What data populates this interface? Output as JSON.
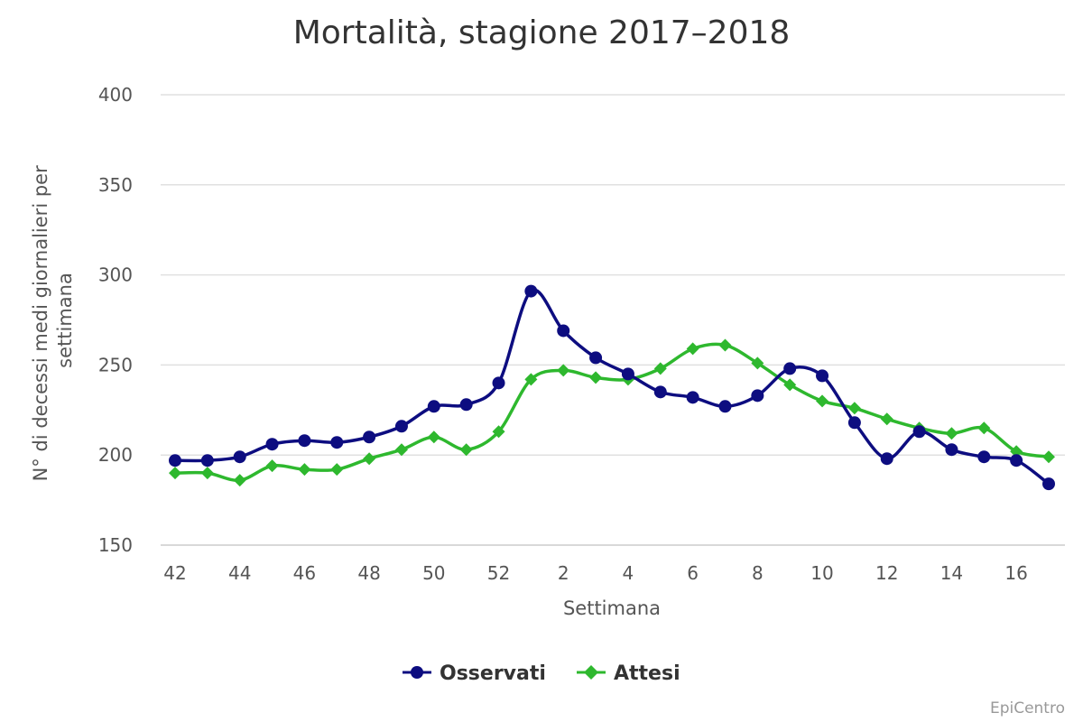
{
  "chart_data": {
    "type": "line",
    "title": "Mortalità, stagione 2017–2018",
    "xlabel": "Settimana",
    "ylabel": "N° di decessi medi giornalieri per settimana",
    "ylabel_lines": [
      "N° di decessi medi giornalieri per",
      "settimana"
    ],
    "ylim": [
      150,
      400
    ],
    "yticks": [
      150,
      200,
      250,
      300,
      350,
      400
    ],
    "grid": true,
    "legend_position": "bottom-center",
    "x": [
      42,
      43,
      44,
      45,
      46,
      47,
      48,
      49,
      50,
      51,
      52,
      1,
      2,
      3,
      4,
      5,
      6,
      7,
      8,
      9,
      10,
      11,
      12,
      13,
      14,
      15,
      16,
      17
    ],
    "x_tick_labels": [
      "42",
      "44",
      "46",
      "48",
      "50",
      "52",
      "2",
      "4",
      "6",
      "8",
      "10",
      "12",
      "14",
      "16"
    ],
    "series": [
      {
        "name": "Osservati",
        "color": "#0d0d80",
        "marker": "circle",
        "values": [
          197,
          197,
          199,
          206,
          208,
          207,
          210,
          216,
          227,
          228,
          240,
          291,
          269,
          254,
          245,
          235,
          232,
          227,
          233,
          248,
          244,
          218,
          198,
          213,
          203,
          199,
          197,
          184
        ]
      },
      {
        "name": "Attesi",
        "color": "#2eb82e",
        "marker": "diamond",
        "values": [
          190,
          190,
          186,
          194,
          192,
          192,
          198,
          203,
          210,
          203,
          213,
          242,
          247,
          243,
          242,
          248,
          259,
          261,
          251,
          239,
          230,
          226,
          220,
          215,
          212,
          215,
          202,
          199
        ]
      }
    ],
    "credit": "EpiCentro"
  }
}
